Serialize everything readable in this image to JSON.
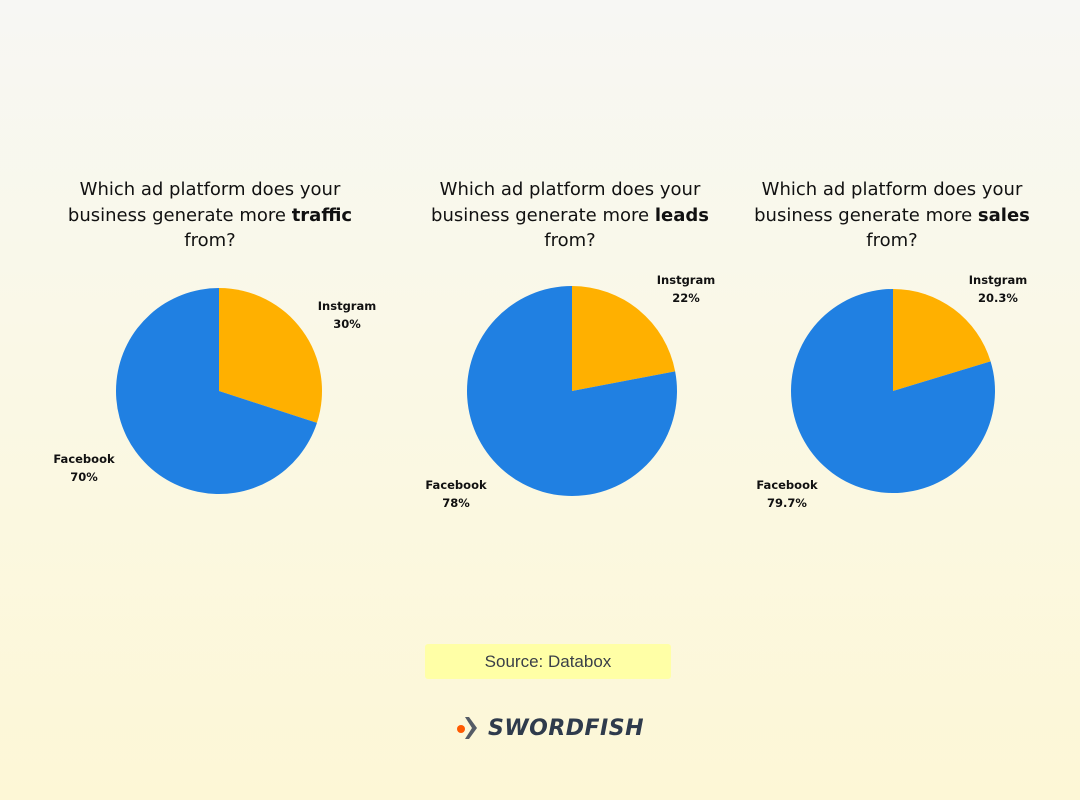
{
  "colors": {
    "facebook": "#2080e2",
    "instagram": "#ffb000"
  },
  "chart_data": [
    {
      "type": "pie",
      "title_parts": [
        "Which ad platform does your business generate more ",
        "traffic",
        " from?"
      ],
      "slices": [
        {
          "label": "Instgram",
          "value": 30,
          "display": "30%"
        },
        {
          "label": "Facebook",
          "value": 70,
          "display": "70%"
        }
      ]
    },
    {
      "type": "pie",
      "title_parts": [
        "Which ad platform does your business generate more ",
        "leads",
        " from?"
      ],
      "slices": [
        {
          "label": "Instgram",
          "value": 22,
          "display": "22%"
        },
        {
          "label": "Facebook",
          "value": 78,
          "display": "78%"
        }
      ]
    },
    {
      "type": "pie",
      "title_parts": [
        "Which ad platform does your business generate more ",
        "sales",
        " from?"
      ],
      "slices": [
        {
          "label": "Instgram",
          "value": 20.3,
          "display": "20.3%"
        },
        {
          "label": "Facebook",
          "value": 79.7,
          "display": "79.7%"
        }
      ]
    }
  ],
  "source": "Source: Databox",
  "logo": {
    "text": "SWORDFISH"
  }
}
